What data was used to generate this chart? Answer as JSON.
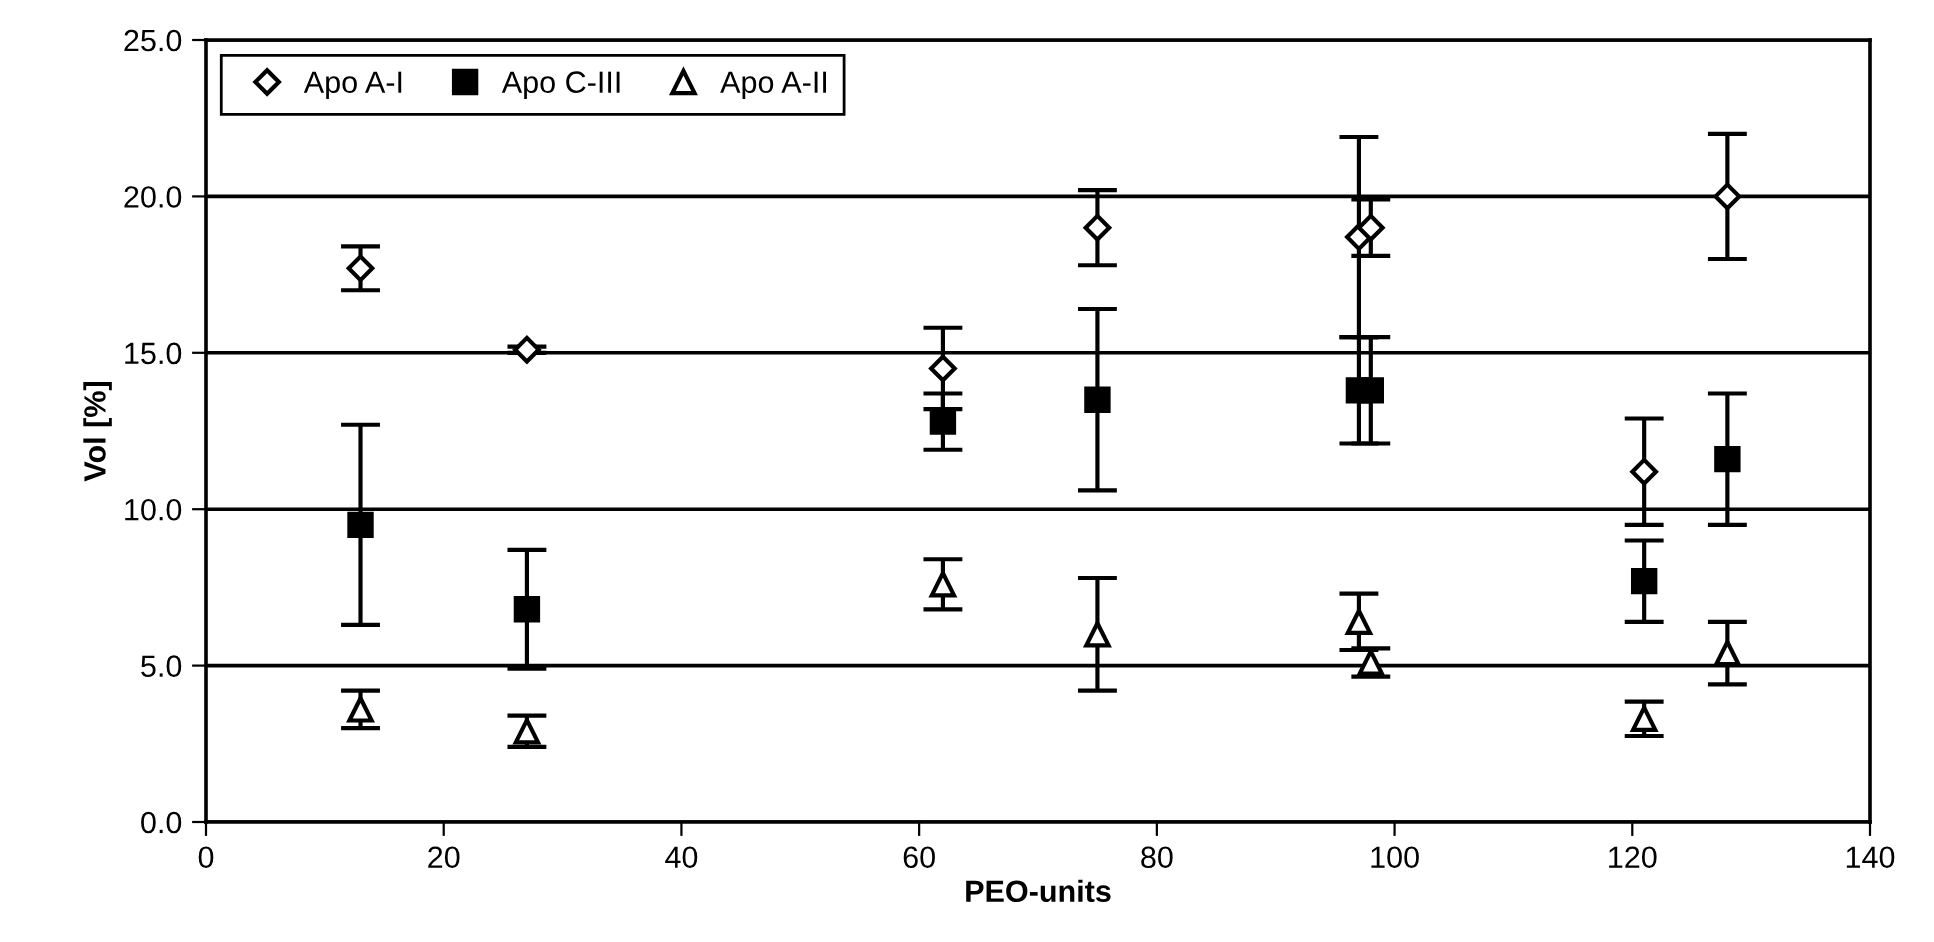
{
  "chart_data": {
    "type": "scatter",
    "xlabel": "PEO-units",
    "ylabel": "Vol [%]",
    "x": [
      13,
      27,
      62,
      75,
      97,
      98,
      121,
      128
    ],
    "series": [
      {
        "name": "Apo A-I",
        "color": "#000000",
        "marker": "diamond",
        "values": [
          17.7,
          15.1,
          14.5,
          19.0,
          18.7,
          19.0,
          11.2,
          20.0
        ],
        "errors": [
          0.7,
          0.1,
          1.3,
          1.2,
          3.2,
          0.9,
          1.7,
          2.0
        ]
      },
      {
        "name": "Apo C-III",
        "color": "#000000",
        "marker": "square",
        "values": [
          9.5,
          6.8,
          12.8,
          13.5,
          13.8,
          13.8,
          7.7,
          11.6
        ],
        "errors": [
          3.2,
          1.9,
          0.9,
          2.9,
          1.7,
          1.7,
          1.3,
          2.1
        ]
      },
      {
        "name": "Apo A-II",
        "color": "#000000",
        "marker": "triangle",
        "values": [
          3.6,
          2.9,
          7.6,
          6.0,
          6.4,
          5.1,
          3.3,
          5.4
        ],
        "errors": [
          0.6,
          0.5,
          0.8,
          1.8,
          0.9,
          0.45,
          0.55,
          1.0
        ]
      }
    ],
    "xlim": [
      0,
      140
    ],
    "xticks": [
      0,
      20,
      40,
      60,
      80,
      100,
      120,
      140
    ],
    "ylim": [
      0,
      25
    ],
    "yticks": [
      {
        "value": 0,
        "label": "0.0"
      },
      {
        "value": 5,
        "label": "5.0"
      },
      {
        "value": 10,
        "label": "10.0"
      },
      {
        "value": 15,
        "label": "15.0"
      },
      {
        "value": 20,
        "label": "20.0"
      },
      {
        "value": 25,
        "label": "25.0"
      }
    ],
    "grid": "y",
    "legend": "top left"
  }
}
